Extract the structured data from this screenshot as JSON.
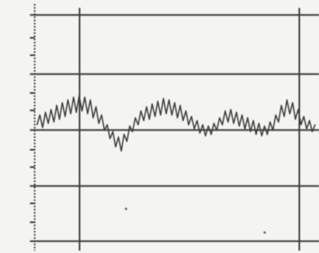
{
  "chart_data": {
    "type": "line",
    "title": "",
    "xlabel": "",
    "ylabel": "",
    "grid": true,
    "legend": "none",
    "series": [
      {
        "values": [
          0.05,
          0.4,
          -0.05,
          0.5,
          0.1,
          0.6,
          0.15,
          0.75,
          0.25,
          0.85,
          0.35,
          0.95,
          0.45,
          1.05,
          0.5,
          1.1,
          0.55,
          1.05,
          0.45,
          0.95,
          0.3,
          0.7,
          0.1,
          0.4,
          -0.15,
          0.05,
          -0.45,
          -0.2,
          -0.75,
          -0.4,
          -0.9,
          -0.3,
          -0.55,
          0.0,
          -0.2,
          0.3,
          0.05,
          0.55,
          0.2,
          0.7,
          0.25,
          0.8,
          0.35,
          0.9,
          0.4,
          1.0,
          0.45,
          0.95,
          0.4,
          0.85,
          0.3,
          0.75,
          0.2,
          0.55,
          0.05,
          0.35,
          -0.1,
          0.2,
          -0.25,
          0.05,
          -0.35,
          0.0,
          -0.3,
          0.1,
          -0.15,
          0.3,
          0.05,
          0.55,
          0.15,
          0.6,
          0.1,
          0.5,
          0.0,
          0.4,
          -0.1,
          0.3,
          -0.2,
          0.2,
          -0.3,
          0.1,
          -0.35,
          0.0,
          -0.3,
          0.15,
          -0.15,
          0.4,
          0.15,
          0.75,
          0.35,
          0.95,
          0.45,
          0.85,
          0.25,
          0.6,
          0.05,
          0.35,
          -0.1,
          0.2,
          -0.2,
          0.05
        ]
      }
    ]
  }
}
